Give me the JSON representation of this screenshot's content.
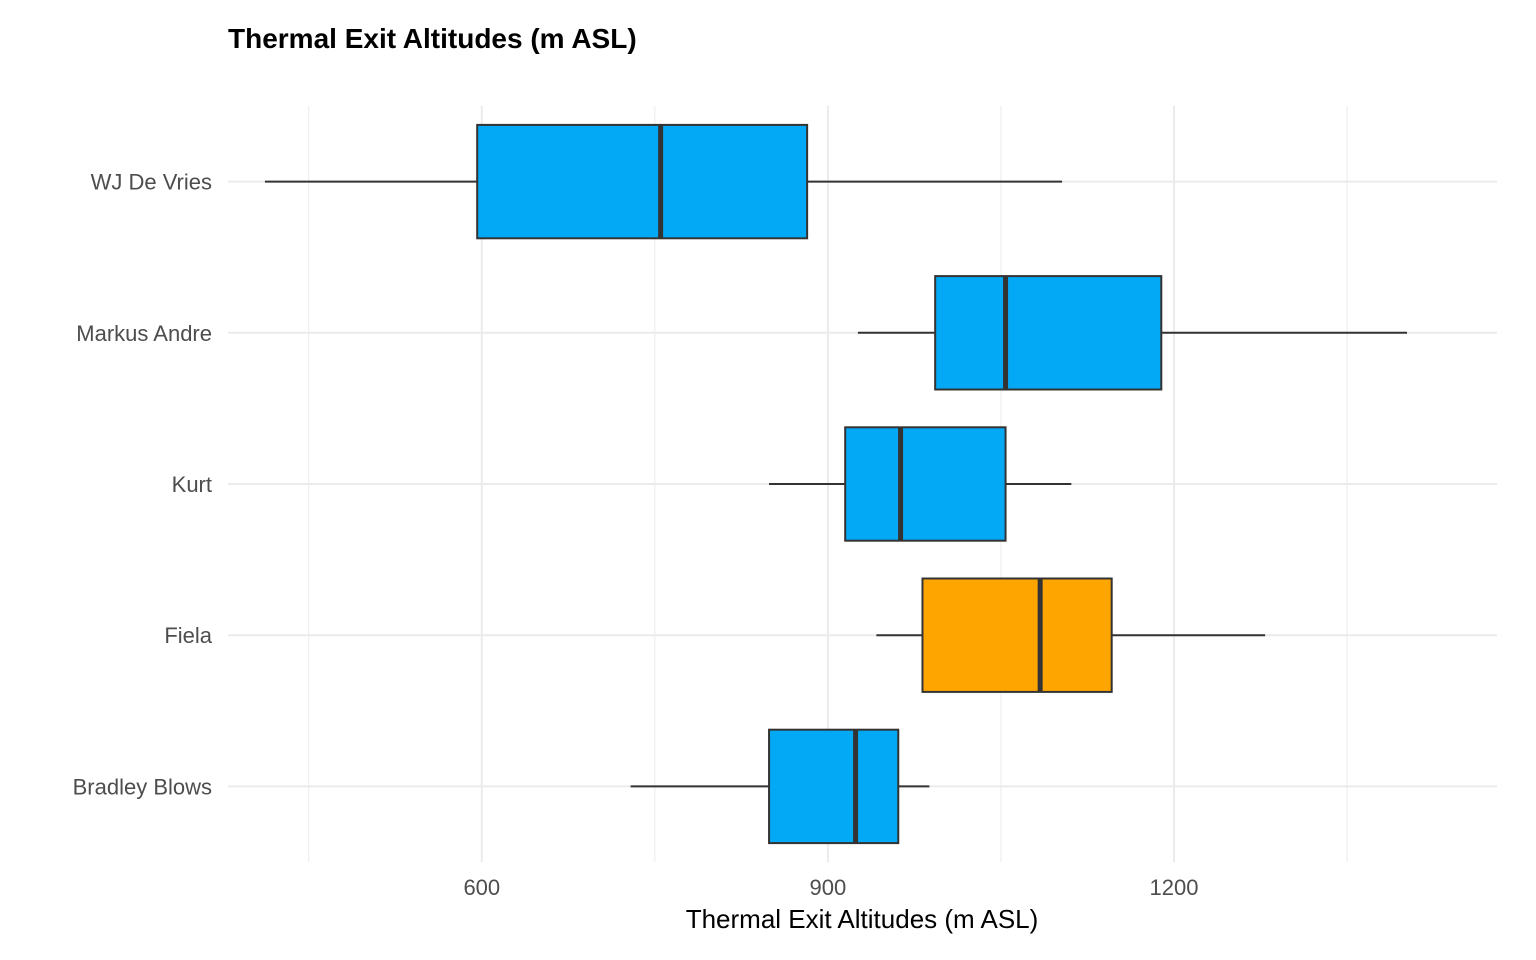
{
  "chart_data": {
    "type": "boxplot",
    "orientation": "horizontal",
    "title": "Thermal Exit Altitudes (m ASL)",
    "xlabel": "Thermal Exit Altitudes (m ASL)",
    "ylabel": "",
    "xlim": [
      380,
      1480
    ],
    "x_ticks": [
      600,
      900,
      1200
    ],
    "x_tick_labels": [
      "600",
      "900",
      "1200"
    ],
    "x_minor_ticks": [
      450,
      750,
      1050,
      1350
    ],
    "grid": true,
    "legend": "none",
    "categories": [
      "WJ De Vries",
      "Markus Andre",
      "Kurt",
      "Fiela",
      "Bradley Blows"
    ],
    "boxes": [
      {
        "category": "WJ De Vries",
        "whisker_low": 412,
        "q1": 596,
        "median": 755,
        "q3": 882,
        "whisker_high": 1103,
        "color": "#03A9F4"
      },
      {
        "category": "Markus Andre",
        "whisker_low": 926,
        "q1": 993,
        "median": 1054,
        "q3": 1189,
        "whisker_high": 1402,
        "color": "#03A9F4"
      },
      {
        "category": "Kurt",
        "whisker_low": 849,
        "q1": 915,
        "median": 963,
        "q3": 1054,
        "whisker_high": 1111,
        "color": "#03A9F4"
      },
      {
        "category": "Fiela",
        "whisker_low": 942,
        "q1": 982,
        "median": 1084,
        "q3": 1146,
        "whisker_high": 1279,
        "color": "#FFA500"
      },
      {
        "category": "Bradley Blows",
        "whisker_low": 729,
        "q1": 849,
        "median": 924,
        "q3": 961,
        "whisker_high": 988,
        "color": "#03A9F4"
      }
    ],
    "colors": {
      "default_fill": "#03A9F4",
      "highlight_fill": "#FFA500",
      "outline": "#333333",
      "grid": "#EBEBEB"
    }
  }
}
